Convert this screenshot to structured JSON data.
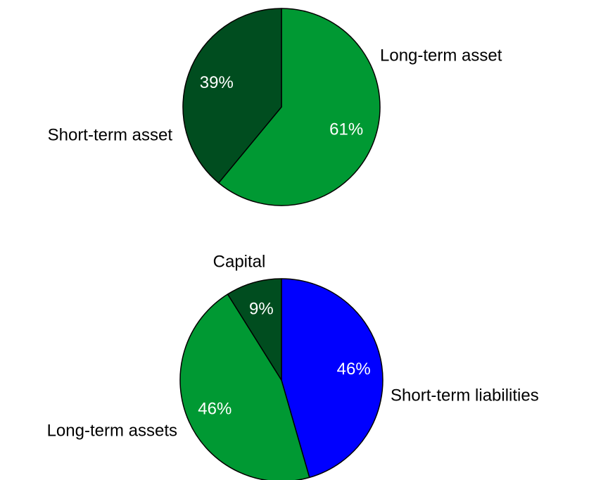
{
  "chart_data": [
    {
      "type": "pie",
      "categories": [
        "Long-term asset",
        "Short-term asset"
      ],
      "values": [
        61,
        39
      ],
      "value_labels": [
        "61%",
        "39%"
      ],
      "colors": [
        "#009933",
        "#004d1f"
      ]
    },
    {
      "type": "pie",
      "categories": [
        "Short-term liabilities",
        "Long-term assets",
        "Capital"
      ],
      "values": [
        46,
        46,
        9
      ],
      "value_labels": [
        "46%",
        "46%",
        "9%"
      ],
      "colors": [
        "#0000ff",
        "#009933",
        "#004d1f"
      ]
    }
  ]
}
